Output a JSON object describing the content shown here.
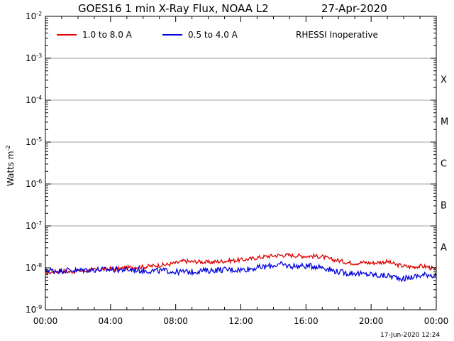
{
  "chart_data": {
    "type": "line",
    "title": "GOES16 1 min X-Ray Flux, NOAA L2",
    "date": "27-Apr-2020",
    "ylabel": "Watts m",
    "ylabel_exponent": "-2",
    "y_scale": "log",
    "ylim": [
      1e-09,
      0.01
    ],
    "y_ticks": [
      {
        "base": "10",
        "exp": "-2"
      },
      {
        "base": "10",
        "exp": "-3"
      },
      {
        "base": "10",
        "exp": "-4"
      },
      {
        "base": "10",
        "exp": "-5"
      },
      {
        "base": "10",
        "exp": "-6"
      },
      {
        "base": "10",
        "exp": "-7"
      },
      {
        "base": "10",
        "exp": "-8"
      },
      {
        "base": "10",
        "exp": "-9"
      }
    ],
    "x_ticks": [
      "00:00",
      "04:00",
      "08:00",
      "12:00",
      "16:00",
      "20:00",
      "00:00"
    ],
    "x_tick_hours": [
      0,
      4,
      8,
      12,
      16,
      20,
      24
    ],
    "flare_classes": [
      {
        "label": "X",
        "level": 0.0001
      },
      {
        "label": "M",
        "level": 1e-05
      },
      {
        "label": "C",
        "level": 1e-06
      },
      {
        "label": "B",
        "level": 1e-07
      },
      {
        "label": "A",
        "level": 1e-08
      }
    ],
    "grid": true,
    "legend_placement": "top",
    "annotation": "RHESSI Inoperative",
    "footer": "17-Jun-2020 12:24",
    "series": [
      {
        "name": "1.0 to 8.0 A",
        "color": "#e00000",
        "x_hours": [
          0,
          0.5,
          1,
          1.5,
          2,
          2.5,
          3,
          3.5,
          4,
          4.5,
          5,
          5.5,
          6,
          6.5,
          7,
          7.5,
          8,
          8.5,
          9,
          9.5,
          10,
          10.5,
          11,
          11.5,
          12,
          12.5,
          13,
          13.5,
          14,
          14.5,
          15,
          15.5,
          16,
          16.5,
          17,
          17.5,
          18,
          18.5,
          19,
          19.5,
          20,
          20.5,
          21,
          21.5,
          22,
          22.5,
          23,
          23.5,
          24
        ],
        "values": [
          7.5e-09,
          8e-09,
          8.5e-09,
          8e-09,
          8.5e-09,
          8.5e-09,
          9e-09,
          9e-09,
          9.5e-09,
          9.5e-09,
          1e-08,
          1.05e-08,
          1.05e-08,
          1.1e-08,
          1.15e-08,
          1.2e-08,
          1.3e-08,
          1.45e-08,
          1.4e-08,
          1.4e-08,
          1.35e-08,
          1.4e-08,
          1.45e-08,
          1.5e-08,
          1.55e-08,
          1.6e-08,
          1.75e-08,
          1.85e-08,
          1.95e-08,
          2e-08,
          2e-08,
          1.95e-08,
          1.9e-08,
          1.9e-08,
          1.85e-08,
          1.6e-08,
          1.5e-08,
          1.35e-08,
          1.3e-08,
          1.35e-08,
          1.3e-08,
          1.35e-08,
          1.4e-08,
          1.2e-08,
          1.1e-08,
          1.05e-08,
          1.1e-08,
          1.05e-08,
          9e-09
        ]
      },
      {
        "name": "0.5 to 4.0 A",
        "color": "#0000e0",
        "x_hours": [
          0,
          0.5,
          1,
          1.5,
          2,
          2.5,
          3,
          3.5,
          4,
          4.5,
          5,
          5.5,
          6,
          6.5,
          7,
          7.5,
          8,
          8.5,
          9,
          9.5,
          10,
          10.5,
          11,
          11.5,
          12,
          12.5,
          13,
          13.5,
          14,
          14.5,
          15,
          15.5,
          16,
          16.5,
          17,
          17.5,
          18,
          18.5,
          19,
          19.5,
          20,
          20.5,
          21,
          21.5,
          22,
          22.5,
          23,
          23.5,
          24
        ],
        "values": [
          9e-09,
          8.5e-09,
          8.5e-09,
          9e-09,
          8.5e-09,
          9e-09,
          9e-09,
          9e-09,
          9e-09,
          9e-09,
          9e-09,
          9e-09,
          8.5e-09,
          8.5e-09,
          8.5e-09,
          8.5e-09,
          8e-09,
          8e-09,
          8e-09,
          8.5e-09,
          8.5e-09,
          9e-09,
          9e-09,
          9e-09,
          9e-09,
          9.5e-09,
          1e-08,
          1.05e-08,
          1.15e-08,
          1.2e-08,
          1.1e-08,
          1.1e-08,
          1.1e-08,
          1.1e-08,
          1.05e-08,
          9e-09,
          8e-09,
          7.5e-09,
          7.5e-09,
          7e-09,
          7e-09,
          6.5e-09,
          6.5e-09,
          6e-09,
          5.5e-09,
          6e-09,
          6.5e-09,
          7e-09,
          6.5e-09
        ]
      }
    ]
  }
}
